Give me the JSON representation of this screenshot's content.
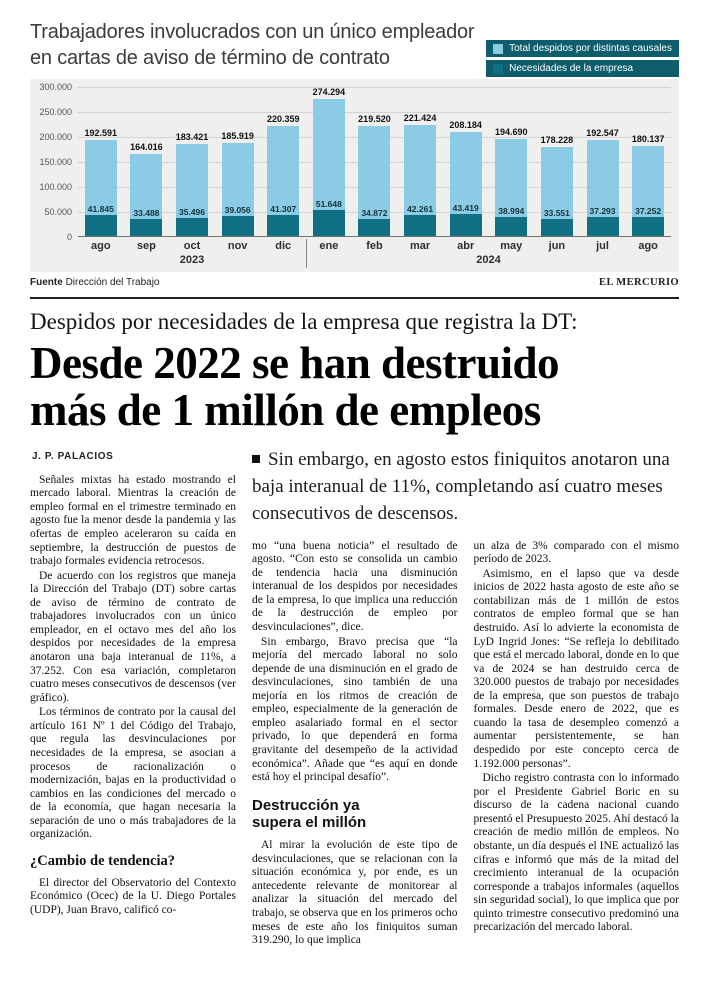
{
  "colors": {
    "total_bar": "#8bcbe5",
    "necesidades_bar": "#0e7082",
    "legend_background": "#0d5d6c",
    "chart_background": "#efefed"
  },
  "chart": {
    "title_line1": "Trabajadores involucrados con un único empleador",
    "title_line2": "en cartas de aviso de término de contrato"
  },
  "chart_data": {
    "type": "bar",
    "title": "Trabajadores involucrados con un único empleador en cartas de aviso de término de contrato",
    "categories": [
      "ago",
      "sep",
      "oct",
      "nov",
      "dic",
      "ene",
      "feb",
      "mar",
      "abr",
      "may",
      "jun",
      "jul",
      "ago"
    ],
    "year_groups": [
      {
        "label": "2023",
        "span": 5
      },
      {
        "label": "2024",
        "span": 8
      }
    ],
    "series": [
      {
        "name": "Total despidos por distintas causales",
        "color": "#8bcbe5",
        "values": [
          192591,
          164016,
          183421,
          185919,
          220359,
          274294,
          219520,
          221424,
          208184,
          194690,
          178228,
          192547,
          180137
        ],
        "labels": [
          "192.591",
          "164.016",
          "183.421",
          "185.919",
          "220.359",
          "274.294",
          "219.520",
          "221.424",
          "208.184",
          "194.690",
          "178.228",
          "192.547",
          "180.137"
        ]
      },
      {
        "name": "Necesidades de la empresa",
        "color": "#0e7082",
        "values": [
          41845,
          33488,
          35496,
          39056,
          41307,
          51648,
          34872,
          42261,
          43419,
          38994,
          33551,
          37293,
          37252
        ],
        "labels": [
          "41.845",
          "33.488",
          "35.496",
          "39.056",
          "41.307",
          "51.648",
          "34.872",
          "42.261",
          "43.419",
          "38.994",
          "33.551",
          "37.293",
          "37.252"
        ]
      }
    ],
    "ylim": [
      0,
      300000
    ],
    "yticks": [
      "300.000",
      "250.000",
      "200.000",
      "150.000",
      "100.000",
      "50.000",
      "0"
    ],
    "grid": true,
    "legend_position": "top-right",
    "source_label": "Fuente",
    "source_text": "Dirección del Trabajo",
    "credit": "EL MERCURIO"
  },
  "article": {
    "kicker": "Despidos por necesidades de la empresa que registra la DT:",
    "headline_line1": "Desde 2022 se han destruido",
    "headline_line2": "más de 1 millón de empleos",
    "byline": "J. P. PALACIOS",
    "deck": "Sin embargo, en agosto estos finiquitos anotaron una baja interanual de 11%, completando así cuatro meses consecutivos de descensos.",
    "columns": [
      {
        "blocks": [
          {
            "t": "p",
            "text": "Señales mixtas ha estado mostrando el mercado laboral. Mientras la creación de empleo formal en el trimestre terminado en agosto fue la menor desde la pandemia y las ofertas de empleo aceleraron su caída en septiembre, la destrucción de puestos de trabajo formales evidencia retrocesos."
          },
          {
            "t": "p",
            "text": "De acuerdo con los registros que maneja la Dirección del Trabajo (DT) sobre cartas de aviso de término de contrato de trabajadores involucrados con un único empleador, en el octavo mes del año los despidos por necesidades de la empresa anotaron una baja interanual de 11%, a 37.252. Con esa variación, completaron cuatro meses consecutivos de descensos (ver gráfico)."
          },
          {
            "t": "p",
            "text": "Los términos de contrato por la causal del artículo 161 Nº 1 del Código del Trabajo, que regula las desvinculaciones por necesidades de la empresa, se asocian a procesos de racionalización o modernización, bajas en la productividad o cambios en las condiciones del mercado o de la economía, que hagan necesaria la separación de uno o más trabajadores de la organización."
          },
          {
            "t": "h-serif",
            "text": "¿Cambio de tendencia?"
          },
          {
            "t": "p",
            "text": "El director del Observatorio del Contexto Económico (Ocec) de la U. Diego Portales (UDP), Juan Bravo, calificó co-"
          }
        ]
      },
      {
        "blocks": [
          {
            "t": "p0",
            "text": "mo “una buena noticia” el resultado de agosto. “Con esto se consolida un cambio de tendencia hacia una disminución interanual de los despidos por necesidades de la empresa, lo que implica una reducción de la destrucción de empleo por desvinculaciones”, dice."
          },
          {
            "t": "p",
            "text": "Sin embargo, Bravo precisa que “la mejoría del mercado laboral no solo depende de una disminución en el grado de desvinculaciones, sino también de una mejoría en los ritmos de creación de empleo, especialmente de la generación de empleo asalariado formal en el sector privado, lo que dependerá en forma gravitante del desempeño de la actividad económica”. Añade que “es aquí en donde está hoy el principal desafío”."
          },
          {
            "t": "h-sans",
            "text": "Destrucción ya supera el millón"
          },
          {
            "t": "p",
            "text": "Al mirar la evolución de este tipo de desvinculaciones, que se relacionan con la situación económica y, por ende, es un antecedente relevante de monitorear al analizar la situación del mercado del trabajo, se observa que en los primeros ocho meses de este año los finiquitos suman 319.290, lo que implica"
          }
        ]
      },
      {
        "blocks": [
          {
            "t": "p0",
            "text": "un alza de 3% comparado con el mismo período de 2023."
          },
          {
            "t": "p",
            "text": "Asimismo, en el lapso que va desde inicios de 2022 hasta agosto de este año se contabilizan más de 1 millón de estos contratos de empleo formal que se han destruido. Así lo advierte la economista de LyD Ingrid Jones: “Se refleja lo debilitado que está el mercado laboral, donde en lo que va de 2024 se han destruido cerca de 320.000 puestos de trabajo por necesidades de la empresa, que son puestos de trabajo formales. Desde enero de 2022, que es cuando la tasa de desempleo comenzó a aumentar persistentemente, se han despedido por este concepto cerca de 1.192.000 personas”."
          },
          {
            "t": "p",
            "text": "Dicho registro contrasta con lo informado por el Presidente Gabriel Boric en su discurso de la cadena nacional cuando presentó el Presupuesto 2025. Ahí destacó la creación de medio millón de empleos. No obstante, un día después el INE actualizó las cifras e informó que más de la mitad del crecimiento interanual de la ocupación corresponde a trabajos informales (aquellos sin seguridad social), lo que implica que por quinto trimestre consecutivo predominó una precarización del mercado laboral."
          }
        ]
      }
    ]
  }
}
